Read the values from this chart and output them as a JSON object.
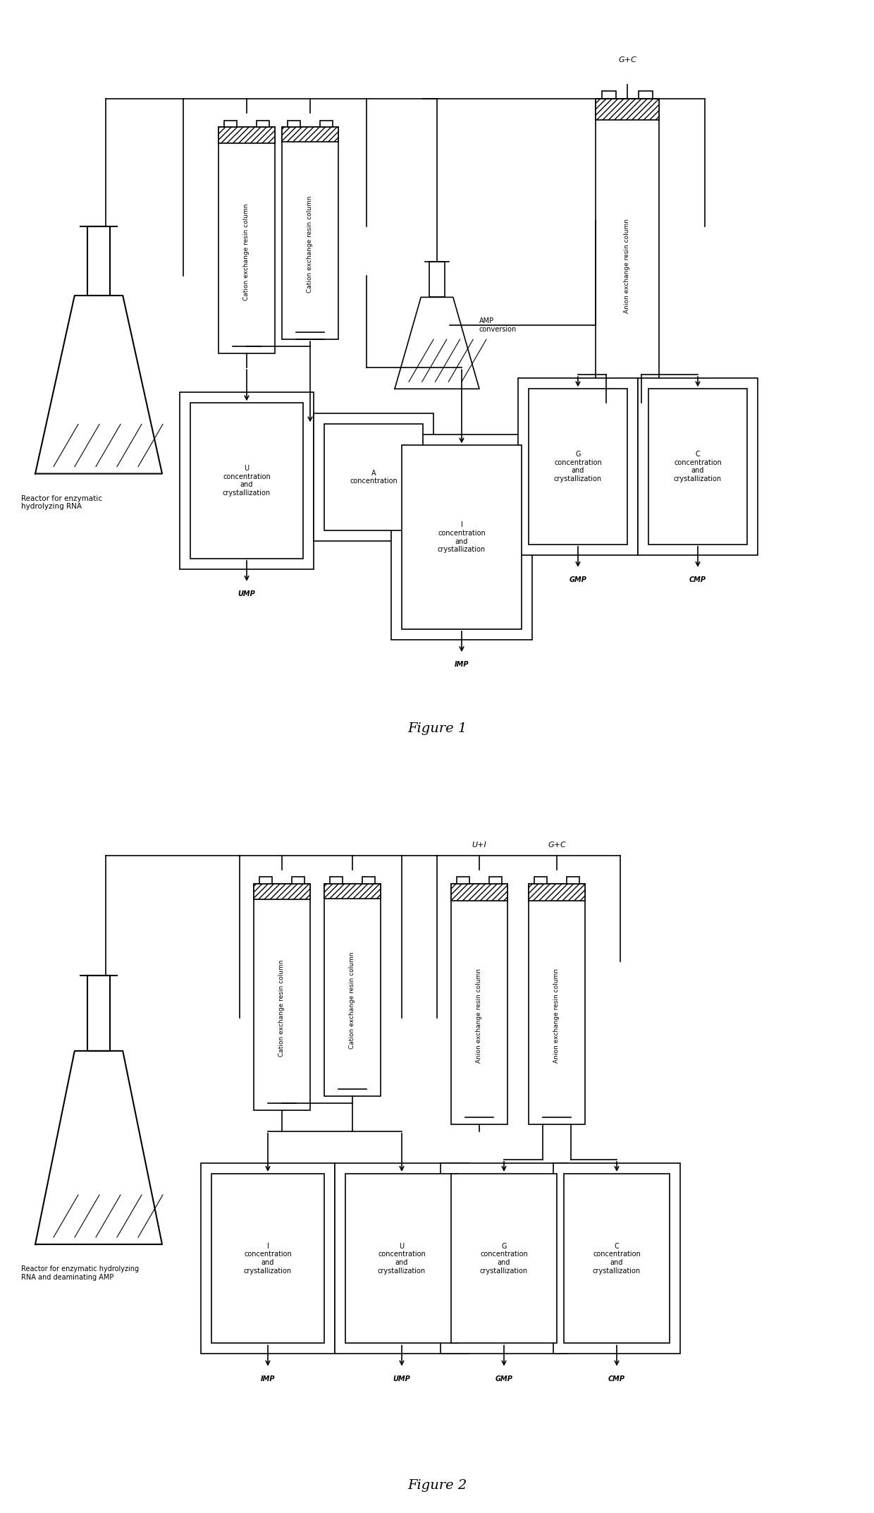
{
  "background": "#ffffff",
  "fig1": {
    "title": "Figure 1",
    "reactor_label": "Reactor for enzymatic\nhydrolyzing RNA",
    "col1_label": "Cation exchange resin column",
    "col2_label": "Cation exchange resin column",
    "col3_label": "Anion exchange resin column",
    "amp_label": "AMP\nconversion",
    "gc_label": "G+C"
  },
  "fig2": {
    "title": "Figure 2",
    "reactor_label": "Reactor for enzymatic hydrolyzing\nRNA and deaminating AMP",
    "col1_label": "Cation exchange resin column",
    "col2_label": "Cation exchange resin column",
    "col3_label": "Anion exchange resin column",
    "col4_label": "Anion exchange resin column",
    "ui_label": "U+I",
    "gc_label": "G+C"
  }
}
